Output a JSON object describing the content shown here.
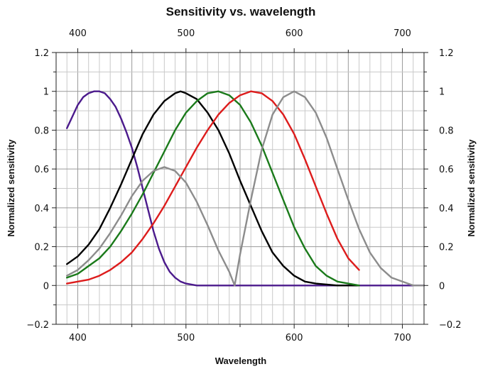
{
  "chart_data": {
    "type": "line",
    "title": "Sensitivity vs. wavelength",
    "xlabel": "Wavelength",
    "ylabel": "Normalized sensitivity",
    "ylabel_right": "Normalized sensitivity",
    "xlim": [
      380,
      720
    ],
    "ylim": [
      -0.2,
      1.2
    ],
    "x_ticks": [
      400,
      500,
      600,
      700
    ],
    "x_tick_labels": [
      "400",
      "500",
      "600",
      "700"
    ],
    "x_ticks_top": [
      400,
      500,
      600,
      700
    ],
    "x_tick_labels_top": [
      "400",
      "500",
      "600",
      "700"
    ],
    "y_ticks": [
      -0.2,
      0,
      0.2,
      0.4,
      0.6,
      0.8,
      1,
      1.2
    ],
    "y_tick_labels": [
      "−0.2",
      "0",
      "0.2",
      "0.4",
      "0.6",
      "0.8",
      "1",
      "1.2"
    ],
    "grid": true,
    "series": [
      {
        "color": "#4b1a8c",
        "x": [
          390,
          395,
          400,
          405,
          410,
          415,
          420,
          425,
          430,
          435,
          440,
          445,
          450,
          455,
          460,
          465,
          470,
          475,
          480,
          485,
          490,
          495,
          500,
          510,
          520,
          540,
          560,
          580,
          600,
          620,
          640,
          660,
          680,
          700,
          720
        ],
        "y": [
          0.81,
          0.87,
          0.93,
          0.97,
          0.99,
          1.0,
          1.0,
          0.99,
          0.96,
          0.92,
          0.86,
          0.79,
          0.71,
          0.61,
          0.5,
          0.39,
          0.28,
          0.19,
          0.12,
          0.07,
          0.04,
          0.02,
          0.01,
          0.0,
          0.0,
          0.0,
          0.0,
          0.0,
          0.0,
          0.0,
          0.0,
          0.0,
          0.0,
          0.0,
          0.0
        ]
      },
      {
        "color": "#000000",
        "x": [
          390,
          400,
          410,
          420,
          430,
          440,
          450,
          460,
          470,
          480,
          490,
          495,
          500,
          510,
          520,
          530,
          540,
          550,
          560,
          570,
          580,
          590,
          600,
          610,
          620,
          640,
          660
        ],
        "y": [
          0.11,
          0.15,
          0.21,
          0.29,
          0.4,
          0.52,
          0.65,
          0.78,
          0.88,
          0.95,
          0.99,
          1.0,
          0.99,
          0.96,
          0.89,
          0.8,
          0.68,
          0.54,
          0.41,
          0.28,
          0.17,
          0.1,
          0.05,
          0.02,
          0.01,
          0.0,
          0.0
        ]
      },
      {
        "color": "#1a7a1a",
        "x": [
          390,
          400,
          410,
          420,
          430,
          440,
          450,
          460,
          470,
          480,
          490,
          500,
          510,
          520,
          530,
          540,
          550,
          560,
          570,
          580,
          590,
          600,
          610,
          620,
          630,
          640,
          650,
          660
        ],
        "y": [
          0.04,
          0.06,
          0.1,
          0.14,
          0.2,
          0.28,
          0.37,
          0.47,
          0.58,
          0.69,
          0.8,
          0.89,
          0.95,
          0.99,
          1.0,
          0.98,
          0.93,
          0.84,
          0.72,
          0.58,
          0.44,
          0.3,
          0.19,
          0.1,
          0.05,
          0.02,
          0.01,
          0.0
        ]
      },
      {
        "color": "#dd1c1c",
        "x": [
          390,
          400,
          410,
          420,
          430,
          440,
          450,
          460,
          470,
          480,
          490,
          500,
          510,
          520,
          530,
          540,
          550,
          560,
          570,
          580,
          590,
          600,
          610,
          620,
          630,
          640,
          650,
          660
        ],
        "y": [
          0.01,
          0.02,
          0.03,
          0.05,
          0.08,
          0.12,
          0.17,
          0.24,
          0.32,
          0.41,
          0.51,
          0.61,
          0.71,
          0.8,
          0.88,
          0.94,
          0.98,
          1.0,
          0.99,
          0.95,
          0.88,
          0.78,
          0.65,
          0.51,
          0.37,
          0.24,
          0.14,
          0.08
        ]
      },
      {
        "color": "#8c8c8c",
        "x": [
          390,
          400,
          410,
          420,
          430,
          440,
          450,
          460,
          470,
          480,
          490,
          500,
          510,
          520,
          530,
          540,
          545,
          550,
          560,
          570,
          580,
          590,
          600,
          610,
          620,
          630,
          640,
          650,
          660,
          670,
          680,
          690,
          700,
          710,
          720
        ],
        "y": [
          0.05,
          0.08,
          0.13,
          0.19,
          0.27,
          0.36,
          0.46,
          0.54,
          0.59,
          0.61,
          0.59,
          0.53,
          0.43,
          0.31,
          0.18,
          0.07,
          0.0,
          0.16,
          0.44,
          0.7,
          0.88,
          0.97,
          1.0,
          0.97,
          0.89,
          0.76,
          0.6,
          0.44,
          0.29,
          0.17,
          0.09,
          0.04,
          0.02,
          0.0,
          0.0
        ]
      }
    ]
  }
}
